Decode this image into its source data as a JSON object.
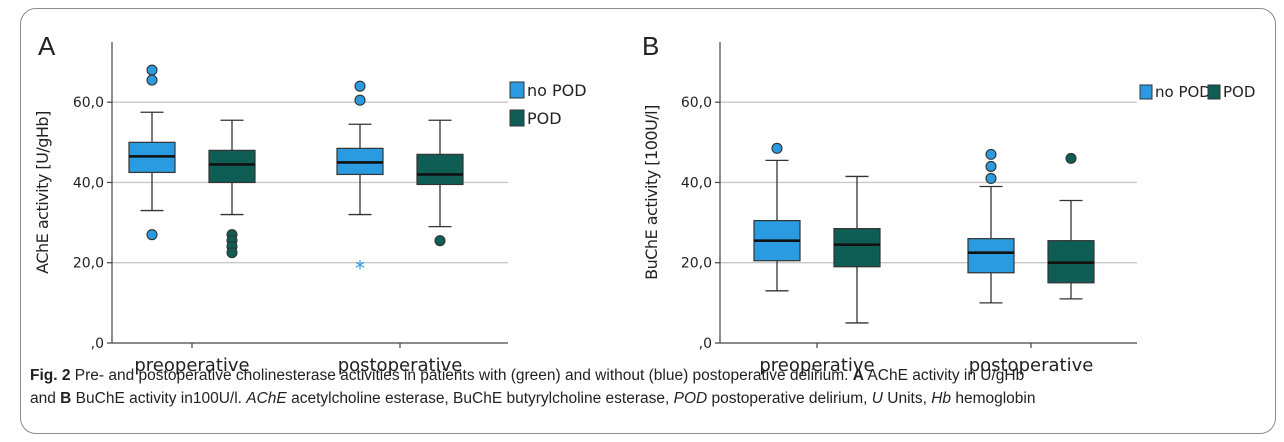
{
  "chart_data": [
    {
      "type": "box",
      "panel_label": "A",
      "ylabel": "AChE activity [U/gHb]",
      "ylim": [
        0,
        75
      ],
      "yticks": [
        0,
        20,
        40,
        60
      ],
      "ytick_labels": [
        ",0",
        "20,0",
        "40,0",
        "60,0"
      ],
      "gridlines": [
        20,
        40,
        60
      ],
      "categories": [
        "preoperative",
        "postoperative"
      ],
      "legend": {
        "placement": "right",
        "layout": "vertical",
        "entries": [
          "no POD",
          "POD"
        ]
      },
      "series": [
        {
          "name": "no POD",
          "color": "#2a9be0",
          "boxes": [
            {
              "whisker_low": 33,
              "q1": 42.5,
              "median": 46.5,
              "q3": 50,
              "whisker_high": 57.5,
              "outliers": [
                68,
                65.5,
                27
              ],
              "extremes": []
            },
            {
              "whisker_low": 32,
              "q1": 42,
              "median": 45,
              "q3": 48.5,
              "whisker_high": 54.5,
              "outliers": [
                64,
                60.5
              ],
              "extremes": [
                19
              ]
            }
          ]
        },
        {
          "name": "POD",
          "color": "#0e5e56",
          "boxes": [
            {
              "whisker_low": 32,
              "q1": 40,
              "median": 44.5,
              "q3": 48,
              "whisker_high": 55.5,
              "outliers": [
                27,
                25.5,
                24,
                22.5
              ],
              "extremes": []
            },
            {
              "whisker_low": 29,
              "q1": 39.5,
              "median": 42,
              "q3": 47,
              "whisker_high": 55.5,
              "outliers": [
                25.5
              ],
              "extremes": []
            }
          ]
        }
      ]
    },
    {
      "type": "box",
      "panel_label": "B",
      "ylabel": "BuChE activity [100U/l]",
      "ylim": [
        0,
        75
      ],
      "yticks": [
        0,
        20,
        40,
        60
      ],
      "ytick_labels": [
        ",0",
        "20,0",
        "40,0",
        "60,0"
      ],
      "gridlines": [
        20,
        40,
        60
      ],
      "categories": [
        "preoperative",
        "postoperative"
      ],
      "legend": {
        "placement": "top-right",
        "layout": "horizontal",
        "entries": [
          "no POD",
          "POD"
        ]
      },
      "series": [
        {
          "name": "no POD",
          "color": "#2a9be0",
          "boxes": [
            {
              "whisker_low": 13,
              "q1": 20.5,
              "median": 25.5,
              "q3": 30.5,
              "whisker_high": 45.5,
              "outliers": [
                48.5
              ],
              "extremes": []
            },
            {
              "whisker_low": 10,
              "q1": 17.5,
              "median": 22.5,
              "q3": 26,
              "whisker_high": 39,
              "outliers": [
                47,
                44,
                41
              ],
              "extremes": []
            }
          ]
        },
        {
          "name": "POD",
          "color": "#0e5e56",
          "boxes": [
            {
              "whisker_low": 5,
              "q1": 19,
              "median": 24.5,
              "q3": 28.5,
              "whisker_high": 41.5,
              "outliers": [],
              "extremes": []
            },
            {
              "whisker_low": 11,
              "q1": 15,
              "median": 20,
              "q3": 25.5,
              "whisker_high": 35.5,
              "outliers": [
                46
              ],
              "extremes": []
            }
          ]
        }
      ]
    }
  ],
  "caption": {
    "fig_label": "Fig. 2",
    "text_1": " Pre- and postoperative cholinesterase activities in patients with (green) and without (blue) postoperative delirium. ",
    "bold_a": "A",
    "text_2": " AChE activity in U/gHb",
    "text_3": "and ",
    "bold_b": "B",
    "text_4": " BuChE activity in100U/l. ",
    "abbr_ache": "AChE",
    "text_5": " acetylcholine esterase, BuChE butyrylcholine esterase, ",
    "abbr_pod": "POD",
    "text_6": " postoperative delirium, ",
    "abbr_u": "U",
    "text_7": " Units, ",
    "abbr_hb": "Hb",
    "text_8": " hemoglobin"
  }
}
